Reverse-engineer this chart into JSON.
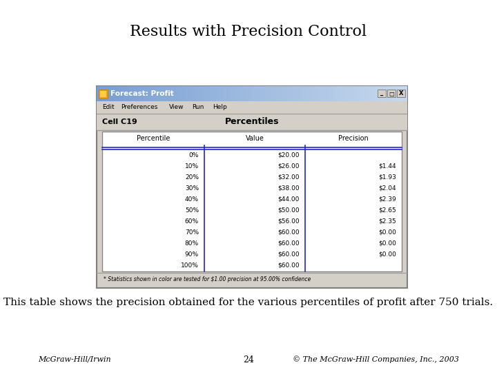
{
  "title": "Results with Precision Control",
  "subtitle": "This table shows the precision obtained for the various percentiles of profit after 750 trials.",
  "footer_left": "McGraw-Hill/Irwin",
  "footer_center": "24",
  "footer_right": "© The McGraw-Hill Companies, Inc., 2003",
  "window_title": "Forecast: Profit",
  "cell_label": "Cell C19",
  "percentiles_label": "Percentiles",
  "col_headers": [
    "Percentile",
    "Value",
    "Precision"
  ],
  "rows": [
    [
      "0%",
      "$20.00",
      ""
    ],
    [
      "10%",
      "$26.00",
      "$1.44"
    ],
    [
      "20%",
      "$32.00",
      "$1.93"
    ],
    [
      "30%",
      "$38.00",
      "$2.04"
    ],
    [
      "40%",
      "$44.00",
      "$2.39"
    ],
    [
      "50%",
      "$50.00",
      "$2.65"
    ],
    [
      "60%",
      "$56.00",
      "$2.35"
    ],
    [
      "70%",
      "$60.00",
      "$0.00"
    ],
    [
      "80%",
      "$60.00",
      "$0.00"
    ],
    [
      "90%",
      "$60.00",
      "$0.00"
    ],
    [
      "100%",
      "$60.00",
      ""
    ]
  ],
  "footnote": "* Statistics shown in color are tested for $1.00 precision at 95.00% confidence",
  "bg_color": "#ffffff",
  "window_bg": "#d4d0c8",
  "titlebar_gradient_left": "#7a9fd4",
  "titlebar_gradient_right": "#c8d8ec",
  "table_bg": "#ffffff",
  "header_row_bg": "#d4d0c8",
  "title_fontsize": 16,
  "subtitle_fontsize": 11,
  "footer_fontsize": 8
}
